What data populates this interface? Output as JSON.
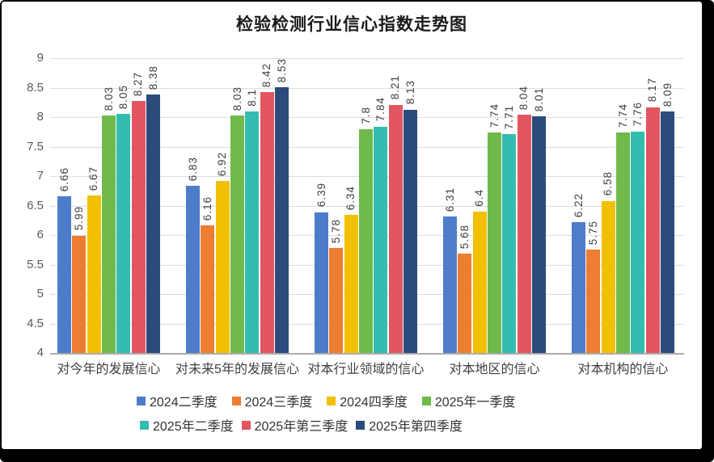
{
  "title": "检验检测行业信心指数走势图",
  "chart_data": {
    "type": "bar",
    "title": "检验检测行业信心指数走势图",
    "categories": [
      "对今年的发展信心",
      "对未来5年的发展信心",
      "对本行业领域的信心",
      "对本地区的信心",
      "对本机构的信心"
    ],
    "series": [
      {
        "name": "2024二季度",
        "color": "#4D7CCB",
        "values": [
          6.66,
          6.83,
          6.39,
          6.31,
          6.22
        ]
      },
      {
        "name": "2024三季度",
        "color": "#ED7D31",
        "values": [
          5.99,
          6.16,
          5.78,
          5.68,
          5.75
        ]
      },
      {
        "name": "2024四季度",
        "color": "#F2C002",
        "values": [
          6.67,
          6.92,
          6.34,
          6.4,
          6.58
        ]
      },
      {
        "name": "2025年一季度",
        "color": "#6FBA4B",
        "values": [
          8.03,
          8.03,
          7.8,
          7.74,
          7.74
        ]
      },
      {
        "name": "2025年二季度",
        "color": "#33BDB0",
        "values": [
          8.05,
          8.1,
          7.84,
          7.71,
          7.76
        ]
      },
      {
        "name": "2025年第三季度",
        "color": "#E25561",
        "values": [
          8.27,
          8.42,
          8.21,
          8.04,
          8.17
        ]
      },
      {
        "name": "2025年第四季度",
        "color": "#2B4B7D",
        "values": [
          8.38,
          8.53,
          8.13,
          8.01,
          8.09
        ]
      }
    ],
    "ylim": [
      4,
      9
    ],
    "ytick_step": 0.5,
    "grid": true,
    "legend_position": "bottom",
    "value_labels": "rotated-90"
  }
}
